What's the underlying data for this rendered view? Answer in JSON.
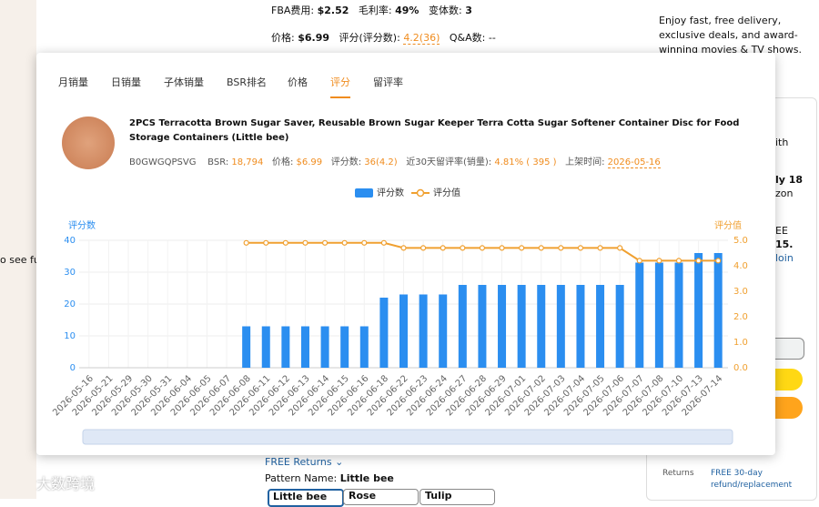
{
  "background": {
    "fba_label": "FBA费用:",
    "fba": "$2.52",
    "margin_label": "毛利率:",
    "margin": "49%",
    "variants_label": "变体数:",
    "variants": "3",
    "price_label": "价格:",
    "price": "$6.99",
    "rating_label": "评分(评分数):",
    "rating": "4.2(36)",
    "qa_label": "Q&A数:",
    "qa": "--",
    "prime_text": [
      "Enjoy fast, free delivery,",
      "exclusive deals, and award-",
      "winning movies & TV shows."
    ],
    "see_full": "o see ful",
    "free_returns": "FREE Returns",
    "pattern_label": "Pattern Name:",
    "pattern": "Little bee",
    "options": [
      "Little bee",
      "Rose",
      "Tulip"
    ],
    "returns_label": "Returns",
    "returns": [
      "FREE 30-day",
      "refund/replacement"
    ],
    "right_fragments": [
      "ith",
      "ly 18",
      "zon",
      "EE",
      "15.",
      "loin"
    ],
    "watermark": "大数跨境"
  },
  "tabs": [
    "月销量",
    "日销量",
    "子体销量",
    "BSR排名",
    "价格",
    "评分",
    "留评率"
  ],
  "active_tab": 5,
  "product": {
    "title": "2PCS Terracotta Brown Sugar Saver, Reusable Brown Sugar Keeper Terra Cotta Sugar Softener Container Disc for Food Storage Containers (Little bee)",
    "asin": "B0GWGQPSVG",
    "bsr_label": "BSR:",
    "bsr": "18,794",
    "price_label": "价格:",
    "price": "$6.99",
    "reviews_label": "评分数:",
    "reviews": "36(4.2)",
    "review_rate_label": "近30天留评率(销量):",
    "review_rate": "4.81% ( 395 )",
    "listed_label": "上架时间:",
    "listed": "2026-05-16"
  },
  "chart_data": {
    "type": "bar-line",
    "categories": [
      "2026-05-16",
      "2026-05-21",
      "2026-05-29",
      "2026-05-30",
      "2026-05-31",
      "2026-06-04",
      "2026-06-05",
      "2026-06-07",
      "2026-06-08",
      "2026-06-11",
      "2026-06-12",
      "2026-06-13",
      "2026-06-14",
      "2026-06-15",
      "2026-06-16",
      "2026-06-18",
      "2026-06-22",
      "2026-06-23",
      "2026-06-24",
      "2026-06-27",
      "2026-06-28",
      "2026-06-29",
      "2026-07-01",
      "2026-07-02",
      "2026-07-03",
      "2026-07-04",
      "2026-07-05",
      "2026-07-06",
      "2026-07-07",
      "2026-07-08",
      "2026-07-10",
      "2026-07-13",
      "2026-07-14"
    ],
    "series": [
      {
        "name": "评分数",
        "type": "bar",
        "color": "#2b8ef0",
        "values": [
          null,
          null,
          null,
          null,
          null,
          null,
          null,
          null,
          13,
          13,
          13,
          13,
          13,
          13,
          13,
          22,
          23,
          23,
          23,
          26,
          26,
          26,
          26,
          26,
          26,
          26,
          26,
          26,
          33,
          33,
          33,
          36,
          36
        ]
      },
      {
        "name": "评分值",
        "type": "line",
        "axis": "y2",
        "color": "#f0a030",
        "values": [
          null,
          null,
          null,
          null,
          null,
          null,
          null,
          null,
          4.9,
          4.9,
          4.9,
          4.9,
          4.9,
          4.9,
          4.9,
          4.9,
          4.7,
          4.7,
          4.7,
          4.7,
          4.7,
          4.7,
          4.7,
          4.7,
          4.7,
          4.7,
          4.7,
          4.7,
          4.2,
          4.2,
          4.2,
          4.2,
          4.2
        ]
      }
    ],
    "ylabel": "评分数",
    "y2label": "评分值",
    "ylim": [
      0,
      40
    ],
    "yticks": [
      0,
      10,
      20,
      30,
      40
    ],
    "y2lim": [
      0,
      5
    ],
    "y2ticks": [
      {
        "value": 0,
        "label": "0.0"
      },
      {
        "value": 1,
        "label": "1.0"
      },
      {
        "value": 2,
        "label": "2.0"
      },
      {
        "value": 3,
        "label": "3.0"
      },
      {
        "value": 4,
        "label": "4.0"
      },
      {
        "value": 5,
        "label": "5.0"
      }
    ],
    "grid": true,
    "legend": "top"
  }
}
